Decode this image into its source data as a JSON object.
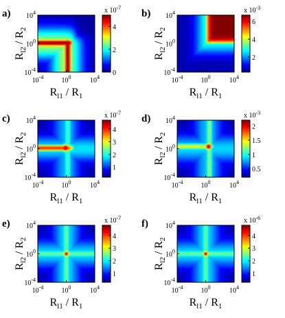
{
  "colormap": [
    "#00008f",
    "#0000ff",
    "#0080ff",
    "#00ffff",
    "#80ff80",
    "#ffff00",
    "#ff8000",
    "#ff0000",
    "#800000"
  ],
  "chart_data": [
    {
      "type": "heatmap",
      "panel": "a)",
      "xlabel": {
        "main": "R",
        "sub": "l1",
        "rest": " / R",
        "sub2": "1"
      },
      "ylabel": {
        "main": "R",
        "sub": "l2",
        "rest": " / R",
        "sub2": "2"
      },
      "x_ticks": [
        {
          "value": -4,
          "base": "10",
          "exp": "-4"
        },
        {
          "value": 0,
          "base": "10",
          "exp": "0"
        },
        {
          "value": 4,
          "base": "10",
          "exp": "4"
        }
      ],
      "y_ticks": [
        {
          "value": -4,
          "base": "10",
          "exp": "-4"
        },
        {
          "value": 0,
          "base": "10",
          "exp": "0"
        },
        {
          "value": 4,
          "base": "10",
          "exp": "4"
        }
      ],
      "xlim": [
        -4,
        4
      ],
      "ylim": [
        -4,
        4
      ],
      "x_scale": "log",
      "y_scale": "log",
      "colorbar": {
        "scale_text": "x 10",
        "scale_exp": "-7",
        "ticks": [
          0,
          2,
          4
        ],
        "range": [
          0,
          5
        ]
      },
      "pattern": "L-shaped ridge along R_l1/R_1 ≈ 1 and R_l2/R_2 ≈ 1 confined to the lower-left region; maximum ≈ 5 x 10^-7"
    },
    {
      "type": "heatmap",
      "panel": "b)",
      "xlabel": {
        "main": "R",
        "sub": "l1",
        "rest": " / R",
        "sub2": "1"
      },
      "ylabel": {
        "main": "R",
        "sub": "l2",
        "rest": " / R",
        "sub2": "2"
      },
      "x_ticks": [
        {
          "value": -4,
          "base": "10",
          "exp": "-4"
        },
        {
          "value": 0,
          "base": "10",
          "exp": "0"
        },
        {
          "value": 4,
          "base": "10",
          "exp": "4"
        }
      ],
      "y_ticks": [
        {
          "value": -4,
          "base": "10",
          "exp": "-4"
        },
        {
          "value": 0,
          "base": "10",
          "exp": "0"
        },
        {
          "value": 4,
          "base": "10",
          "exp": "4"
        }
      ],
      "xlim": [
        -4,
        4
      ],
      "ylim": [
        -4,
        4
      ],
      "x_scale": "log",
      "y_scale": "log",
      "colorbar": {
        "scale_text": "x 10",
        "scale_exp": "-3",
        "ticks": [
          2,
          4,
          6
        ],
        "range": [
          0.3,
          6.7
        ]
      },
      "pattern": "Saturated maximum (≈ 6.7 x 10^-3) over the upper-right region where both ratios exceed 1"
    },
    {
      "type": "heatmap",
      "panel": "c)",
      "xlabel": {
        "main": "R",
        "sub": "l1",
        "rest": " / R",
        "sub2": "1"
      },
      "ylabel": {
        "main": "R",
        "sub": "l2",
        "rest": " / R",
        "sub2": "2"
      },
      "x_ticks": [
        {
          "value": -4,
          "base": "10",
          "exp": "-4"
        },
        {
          "value": 0,
          "base": "10",
          "exp": "0"
        },
        {
          "value": 4,
          "base": "10",
          "exp": "4"
        }
      ],
      "y_ticks": [
        {
          "value": -4,
          "base": "10",
          "exp": "-4"
        },
        {
          "value": 0,
          "base": "10",
          "exp": "0"
        },
        {
          "value": 4,
          "base": "10",
          "exp": "4"
        }
      ],
      "xlim": [
        -4,
        4
      ],
      "ylim": [
        -4,
        4
      ],
      "x_scale": "log",
      "y_scale": "log",
      "colorbar": {
        "scale_text": "x 10",
        "scale_exp": "-7",
        "ticks": [
          1,
          2,
          3,
          4
        ],
        "range": [
          0.2,
          4.7
        ]
      },
      "pattern": "Cross with horizontal arm at R_l2/R_2 ≈ 1 and vertical arm at R_l1/R_1 ≈ 1; peak ≈ 4.7 x 10^-7 at the intersection"
    },
    {
      "type": "heatmap",
      "panel": "d)",
      "xlabel": {
        "main": "R",
        "sub": "l1",
        "rest": " / R",
        "sub2": "1"
      },
      "ylabel": {
        "main": "R",
        "sub": "l2",
        "rest": " / R",
        "sub2": "2"
      },
      "x_ticks": [
        {
          "value": -4,
          "base": "10",
          "exp": "-4"
        },
        {
          "value": 0,
          "base": "10",
          "exp": "0"
        },
        {
          "value": 4,
          "base": "10",
          "exp": "4"
        }
      ],
      "y_ticks": [
        {
          "value": -4,
          "base": "10",
          "exp": "-4"
        },
        {
          "value": 0,
          "base": "10",
          "exp": "0"
        },
        {
          "value": 4,
          "base": "10",
          "exp": "4"
        }
      ],
      "xlim": [
        -4,
        4
      ],
      "ylim": [
        -4,
        4
      ],
      "x_scale": "log",
      "y_scale": "log",
      "colorbar": {
        "scale_text": "x 10",
        "scale_exp": "-3",
        "ticks": [
          0.5,
          1,
          1.5,
          2
        ],
        "range": [
          0.2,
          2.2
        ]
      },
      "pattern": "Cross centred near (10^0, 10^0); peak ≈ 2.2 x 10^-3"
    },
    {
      "type": "heatmap",
      "panel": "e)",
      "xlabel": {
        "main": "R",
        "sub": "l1",
        "rest": " / R",
        "sub2": "1"
      },
      "ylabel": {
        "main": "R",
        "sub": "l2",
        "rest": " / R",
        "sub2": "2"
      },
      "x_ticks": [
        {
          "value": -4,
          "base": "10",
          "exp": "-4"
        },
        {
          "value": 0,
          "base": "10",
          "exp": "0"
        },
        {
          "value": 4,
          "base": "10",
          "exp": "4"
        }
      ],
      "y_ticks": [
        {
          "value": -4,
          "base": "10",
          "exp": "-4"
        },
        {
          "value": 0,
          "base": "10",
          "exp": "0"
        },
        {
          "value": 4,
          "base": "10",
          "exp": "4"
        }
      ],
      "xlim": [
        -4,
        4
      ],
      "ylim": [
        -4,
        4
      ],
      "x_scale": "log",
      "y_scale": "log",
      "colorbar": {
        "scale_text": "x 10",
        "scale_exp": "-7",
        "ticks": [
          1,
          2,
          3,
          4
        ],
        "range": [
          0.3,
          4.8
        ]
      },
      "pattern": "Symmetric cross centred at (10^0, 10^0); peak ≈ 4.8 x 10^-7"
    },
    {
      "type": "heatmap",
      "panel": "f)",
      "xlabel": {
        "main": "R",
        "sub": "l1",
        "rest": " / R",
        "sub2": "1"
      },
      "ylabel": {
        "main": "R",
        "sub": "l2",
        "rest": " / R",
        "sub2": "2"
      },
      "x_ticks": [
        {
          "value": -4,
          "base": "10",
          "exp": "-4"
        },
        {
          "value": 0,
          "base": "10",
          "exp": "0"
        },
        {
          "value": 4,
          "base": "10",
          "exp": "4"
        }
      ],
      "y_ticks": [
        {
          "value": -4,
          "base": "10",
          "exp": "-4"
        },
        {
          "value": 0,
          "base": "10",
          "exp": "0"
        },
        {
          "value": 4,
          "base": "10",
          "exp": "4"
        }
      ],
      "xlim": [
        -4,
        4
      ],
      "ylim": [
        -4,
        4
      ],
      "x_scale": "log",
      "y_scale": "log",
      "colorbar": {
        "scale_text": "x 10",
        "scale_exp": "-6",
        "ticks": [
          1,
          2,
          3,
          4
        ],
        "range": [
          0.3,
          4.8
        ]
      },
      "pattern": "Symmetric cross centred at (10^0, 10^0); peak ≈ 4.8 x 10^-6"
    }
  ]
}
